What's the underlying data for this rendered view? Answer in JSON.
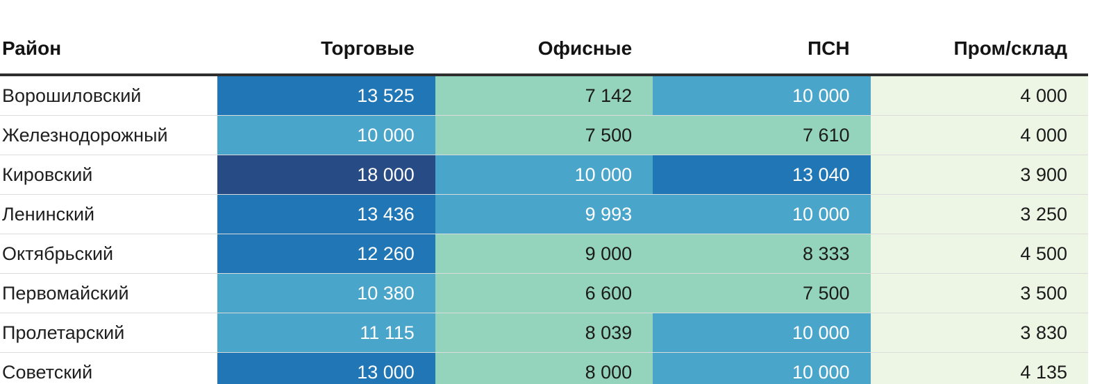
{
  "table": {
    "columns": [
      {
        "label": "Район"
      },
      {
        "label": "Торговые"
      },
      {
        "label": "Офисные"
      },
      {
        "label": "ПСН"
      },
      {
        "label": "Пром/склад"
      }
    ],
    "rows": [
      {
        "district": "Ворошиловский",
        "values": [
          13525,
          7142,
          10000,
          4000
        ]
      },
      {
        "district": "Железнодорожный",
        "values": [
          10000,
          7500,
          7610,
          4000
        ]
      },
      {
        "district": "Кировский",
        "values": [
          18000,
          10000,
          13040,
          3900
        ]
      },
      {
        "district": "Ленинский",
        "values": [
          13436,
          9993,
          10000,
          3250
        ]
      },
      {
        "district": "Октябрьский",
        "values": [
          12260,
          9000,
          8333,
          4500
        ]
      },
      {
        "district": "Первомайский",
        "values": [
          10380,
          6600,
          7500,
          3500
        ]
      },
      {
        "district": "Пролетарский",
        "values": [
          11115,
          8039,
          10000,
          3830
        ]
      },
      {
        "district": "Советский",
        "values": [
          13000,
          8000,
          10000,
          4135
        ]
      }
    ],
    "number_group_separator": " "
  },
  "heatmap": {
    "thresholds": [
      5000,
      9500,
      12000,
      15000
    ],
    "colors": [
      "#edf6e4",
      "#94d3bc",
      "#4aa5ca",
      "#2177b5",
      "#274b84"
    ],
    "text_colors": [
      "#1b1b1b",
      "#1b1b1b",
      "#ffffff",
      "#ffffff",
      "#ffffff"
    ],
    "header_rule_color": "#2e2e2e",
    "row_separator_color": "#dcdcdc"
  },
  "chart_data": {
    "type": "heatmap",
    "rows": [
      "Ворошиловский",
      "Железнодорожный",
      "Кировский",
      "Ленинский",
      "Октябрьский",
      "Первомайский",
      "Пролетарский",
      "Советский"
    ],
    "columns": [
      "Торговые",
      "Офисные",
      "ПСН",
      "Пром/склад"
    ],
    "values": [
      [
        13525,
        7142,
        10000,
        4000
      ],
      [
        10000,
        7500,
        7610,
        4000
      ],
      [
        18000,
        10000,
        13040,
        3900
      ],
      [
        13436,
        9993,
        10000,
        3250
      ],
      [
        12260,
        9000,
        8333,
        4500
      ],
      [
        10380,
        6600,
        7500,
        3500
      ],
      [
        11115,
        8039,
        10000,
        3830
      ],
      [
        13000,
        8000,
        10000,
        4135
      ]
    ],
    "title": "",
    "xlabel": "",
    "ylabel": "",
    "legend": "none",
    "color_scale_low_to_high": [
      "#edf6e4",
      "#94d3bc",
      "#4aa5ca",
      "#2177b5",
      "#274b84"
    ]
  }
}
